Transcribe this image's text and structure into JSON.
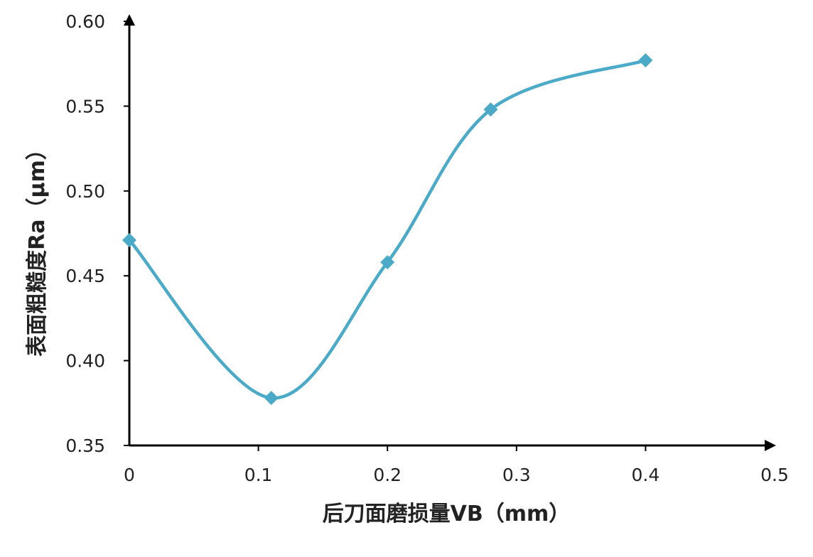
{
  "chart_data": {
    "type": "line",
    "smooth": true,
    "x": [
      0,
      0.11,
      0.2,
      0.28,
      0.4
    ],
    "series": [
      {
        "values": [
          0.471,
          0.378,
          0.458,
          0.548,
          0.577
        ],
        "color": "#4aaac8",
        "marker": "diamond"
      }
    ],
    "xlabel": "后刀面磨损量VB（mm）",
    "ylabel": "表面粗糙度Ra（μm）",
    "xlim": [
      0,
      0.5
    ],
    "ylim": [
      0.35,
      0.6
    ],
    "xticks": [
      "0",
      "0.1",
      "0.2",
      "0.3",
      "0.4",
      "0.5"
    ],
    "yticks": [
      "0.35",
      "0.40",
      "0.45",
      "0.50",
      "0.55",
      "0.60"
    ],
    "grid": false,
    "legend": "none"
  }
}
